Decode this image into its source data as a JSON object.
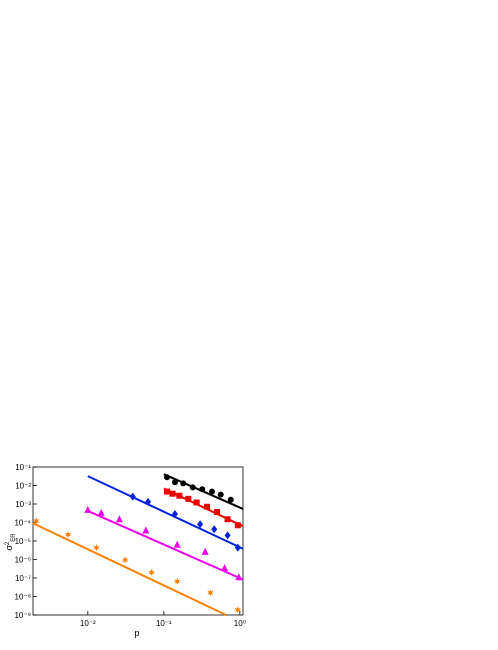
{
  "chart_data": {
    "type": "scatter",
    "xlabel": "p",
    "ylabel": {
      "base": "σ",
      "sup": "2",
      "sub": "ER"
    },
    "xscale": "log",
    "yscale": "log",
    "xlim": [
      0.0019,
      1.1
    ],
    "ylim": [
      1e-09,
      0.1
    ],
    "xticks": [
      {
        "value": 0.01,
        "label": "10⁻²"
      },
      {
        "value": 0.1,
        "label": "10⁻¹"
      },
      {
        "value": 1,
        "label": "10⁰"
      }
    ],
    "yticks": [
      {
        "value": 1e-09,
        "label": "10⁻⁹"
      },
      {
        "value": 1e-08,
        "label": "10⁻⁸"
      },
      {
        "value": 1e-07,
        "label": "10⁻⁷"
      },
      {
        "value": 1e-06,
        "label": "10⁻⁶"
      },
      {
        "value": 1e-05,
        "label": "10⁻⁵"
      },
      {
        "value": 0.0001,
        "label": "10⁻⁴"
      },
      {
        "value": 0.001,
        "label": "10⁻³"
      },
      {
        "value": 0.01,
        "label": "10⁻²"
      },
      {
        "value": 0.1,
        "label": "10⁻¹"
      }
    ],
    "series": [
      {
        "color": "#000000",
        "marker": "circle",
        "x": [
          0.11,
          0.14,
          0.18,
          0.24,
          0.32,
          0.43,
          0.56,
          0.76
        ],
        "values": [
          0.028,
          0.015,
          0.013,
          0.0079,
          0.0063,
          0.0047,
          0.0032,
          0.0017
        ]
      },
      {
        "color": "#000000",
        "marker": "line",
        "x": [
          0.1,
          1.1
        ],
        "values": [
          0.041,
          0.00054
        ]
      },
      {
        "color": "#ee0000",
        "marker": "square",
        "x": [
          0.11,
          0.13,
          0.16,
          0.21,
          0.27,
          0.37,
          0.5,
          0.69,
          0.94
        ],
        "values": [
          0.0047,
          0.0036,
          0.0028,
          0.0019,
          0.0012,
          0.00071,
          0.00037,
          0.00015,
          7.1e-05
        ]
      },
      {
        "color": "#ee0000",
        "marker": "line",
        "x": [
          0.1,
          1.1
        ],
        "values": [
          0.0069,
          6.3e-05
        ]
      },
      {
        "color": "#0022dd",
        "marker": "diamond",
        "x": [
          0.039,
          0.062,
          0.14,
          0.3,
          0.46,
          0.69,
          0.94
        ],
        "values": [
          0.0025,
          0.0013,
          0.00029,
          8.1e-05,
          4.3e-05,
          2e-05,
          4.4e-06
        ]
      },
      {
        "color": "#0022dd",
        "marker": "line",
        "x": [
          0.01,
          1.1
        ],
        "values": [
          0.032,
          3.8e-06
        ]
      },
      {
        "color": "#ee00ee",
        "marker": "triangle",
        "x": [
          0.01,
          0.015,
          0.026,
          0.058,
          0.15,
          0.35,
          0.63,
          0.97
        ],
        "values": [
          0.00048,
          0.00033,
          0.00015,
          3.7e-05,
          6.3e-06,
          2.6e-06,
          3.4e-07,
          1.1e-07
        ]
      },
      {
        "color": "#ee00ee",
        "marker": "line",
        "x": [
          0.01,
          1.1
        ],
        "values": [
          0.00042,
          8.3e-08
        ]
      },
      {
        "color": "#ff8000",
        "marker": "star",
        "x": [
          0.0021,
          0.0055,
          0.013,
          0.031,
          0.069,
          0.15,
          0.41,
          0.94
        ],
        "values": [
          0.00012,
          2.2e-05,
          4.4e-06,
          9.4e-07,
          2e-07,
          6.5e-08,
          1.6e-08,
          1.9e-09
        ]
      },
      {
        "color": "#ff8000",
        "marker": "line",
        "x": [
          0.0019,
          0.66
        ],
        "values": [
          9.1e-05,
          1e-09
        ]
      }
    ]
  }
}
